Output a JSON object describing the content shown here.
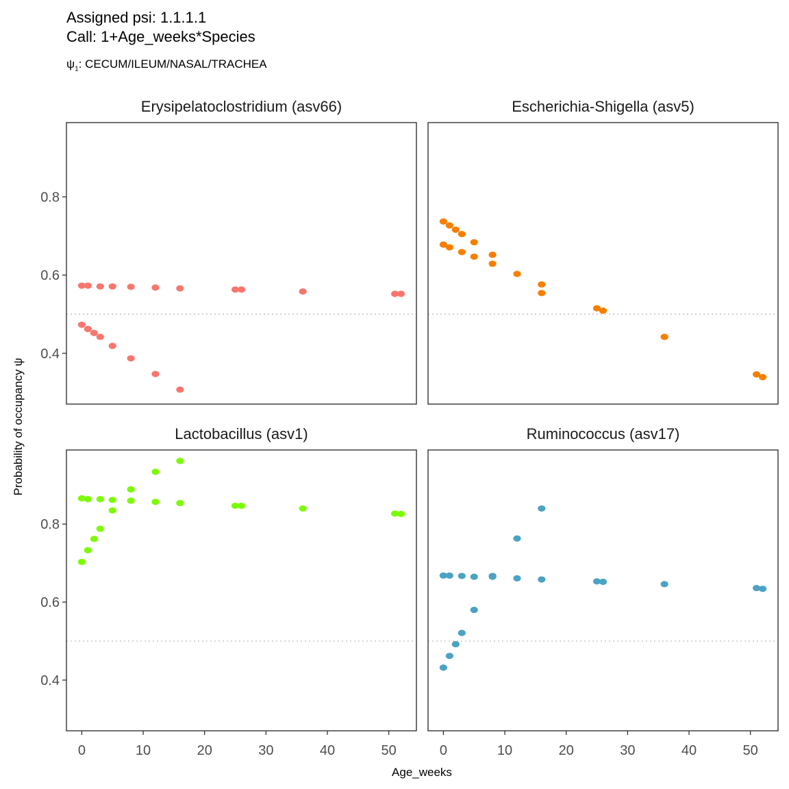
{
  "header": {
    "line1": "Assigned psi: 1.1.1.1",
    "line2": "Call: 1+Age_weeks*Species",
    "psi_symbol": "ψ",
    "psi_sub": "1",
    "line3": ": CECUM/ILEUM/NASAL/TRACHEA"
  },
  "chart_data": {
    "type": "scatter",
    "xlabel": "Age_weeks",
    "ylabel": "Probability of occupancy ψ",
    "xlim": [
      -2.5,
      54.5
    ],
    "ylim": [
      0.27,
      0.99
    ],
    "xticks": [
      0,
      10,
      20,
      30,
      40,
      50
    ],
    "yticks": [
      0.4,
      0.6,
      0.8
    ],
    "reference_line": 0.5,
    "grid": false,
    "panels": [
      {
        "title": "Erysipelatoclostridium (asv66)",
        "color": "#F8766D",
        "points": [
          [
            0,
            0.573
          ],
          [
            1,
            0.573
          ],
          [
            3,
            0.571
          ],
          [
            5,
            0.571
          ],
          [
            8,
            0.57
          ],
          [
            12,
            0.568
          ],
          [
            16,
            0.566
          ],
          [
            25,
            0.563
          ],
          [
            26,
            0.563
          ],
          [
            36,
            0.558
          ],
          [
            51,
            0.552
          ],
          [
            52,
            0.552
          ],
          [
            0,
            0.473
          ],
          [
            1,
            0.462
          ],
          [
            2,
            0.452
          ],
          [
            3,
            0.442
          ],
          [
            5,
            0.419
          ],
          [
            8,
            0.387
          ],
          [
            12,
            0.347
          ],
          [
            16,
            0.307
          ]
        ]
      },
      {
        "title": "Escherichia-Shigella (asv5)",
        "color": "#F77F00",
        "points": [
          [
            0,
            0.737
          ],
          [
            1,
            0.727
          ],
          [
            2,
            0.716
          ],
          [
            3,
            0.705
          ],
          [
            5,
            0.684
          ],
          [
            8,
            0.652
          ],
          [
            12,
            0.603
          ],
          [
            16,
            0.576
          ],
          [
            25,
            0.515
          ],
          [
            26,
            0.509
          ],
          [
            36,
            0.442
          ],
          [
            51,
            0.346
          ],
          [
            52,
            0.339
          ],
          [
            0,
            0.678
          ],
          [
            1,
            0.671
          ],
          [
            3,
            0.659
          ],
          [
            5,
            0.647
          ],
          [
            8,
            0.629
          ],
          [
            16,
            0.554
          ]
        ]
      },
      {
        "title": "Lactobacillus (asv1)",
        "color": "#7CFC00",
        "points": [
          [
            0,
            0.866
          ],
          [
            1,
            0.864
          ],
          [
            3,
            0.864
          ],
          [
            5,
            0.862
          ],
          [
            8,
            0.86
          ],
          [
            12,
            0.857
          ],
          [
            16,
            0.854
          ],
          [
            25,
            0.847
          ],
          [
            26,
            0.847
          ],
          [
            36,
            0.84
          ],
          [
            51,
            0.827
          ],
          [
            52,
            0.826
          ],
          [
            0,
            0.703
          ],
          [
            1,
            0.733
          ],
          [
            2,
            0.762
          ],
          [
            3,
            0.788
          ],
          [
            5,
            0.835
          ],
          [
            8,
            0.889
          ],
          [
            12,
            0.934
          ],
          [
            16,
            0.962
          ]
        ]
      },
      {
        "title": "Ruminococcus (asv17)",
        "color": "#4BA3C3",
        "points": [
          [
            0,
            0.668
          ],
          [
            1,
            0.668
          ],
          [
            3,
            0.667
          ],
          [
            5,
            0.665
          ],
          [
            8,
            0.665
          ],
          [
            12,
            0.661
          ],
          [
            16,
            0.658
          ],
          [
            25,
            0.653
          ],
          [
            26,
            0.652
          ],
          [
            36,
            0.646
          ],
          [
            51,
            0.636
          ],
          [
            52,
            0.634
          ],
          [
            0,
            0.432
          ],
          [
            1,
            0.462
          ],
          [
            2,
            0.492
          ],
          [
            3,
            0.521
          ],
          [
            5,
            0.58
          ],
          [
            8,
            0.667
          ],
          [
            12,
            0.763
          ],
          [
            16,
            0.84
          ]
        ]
      }
    ]
  }
}
